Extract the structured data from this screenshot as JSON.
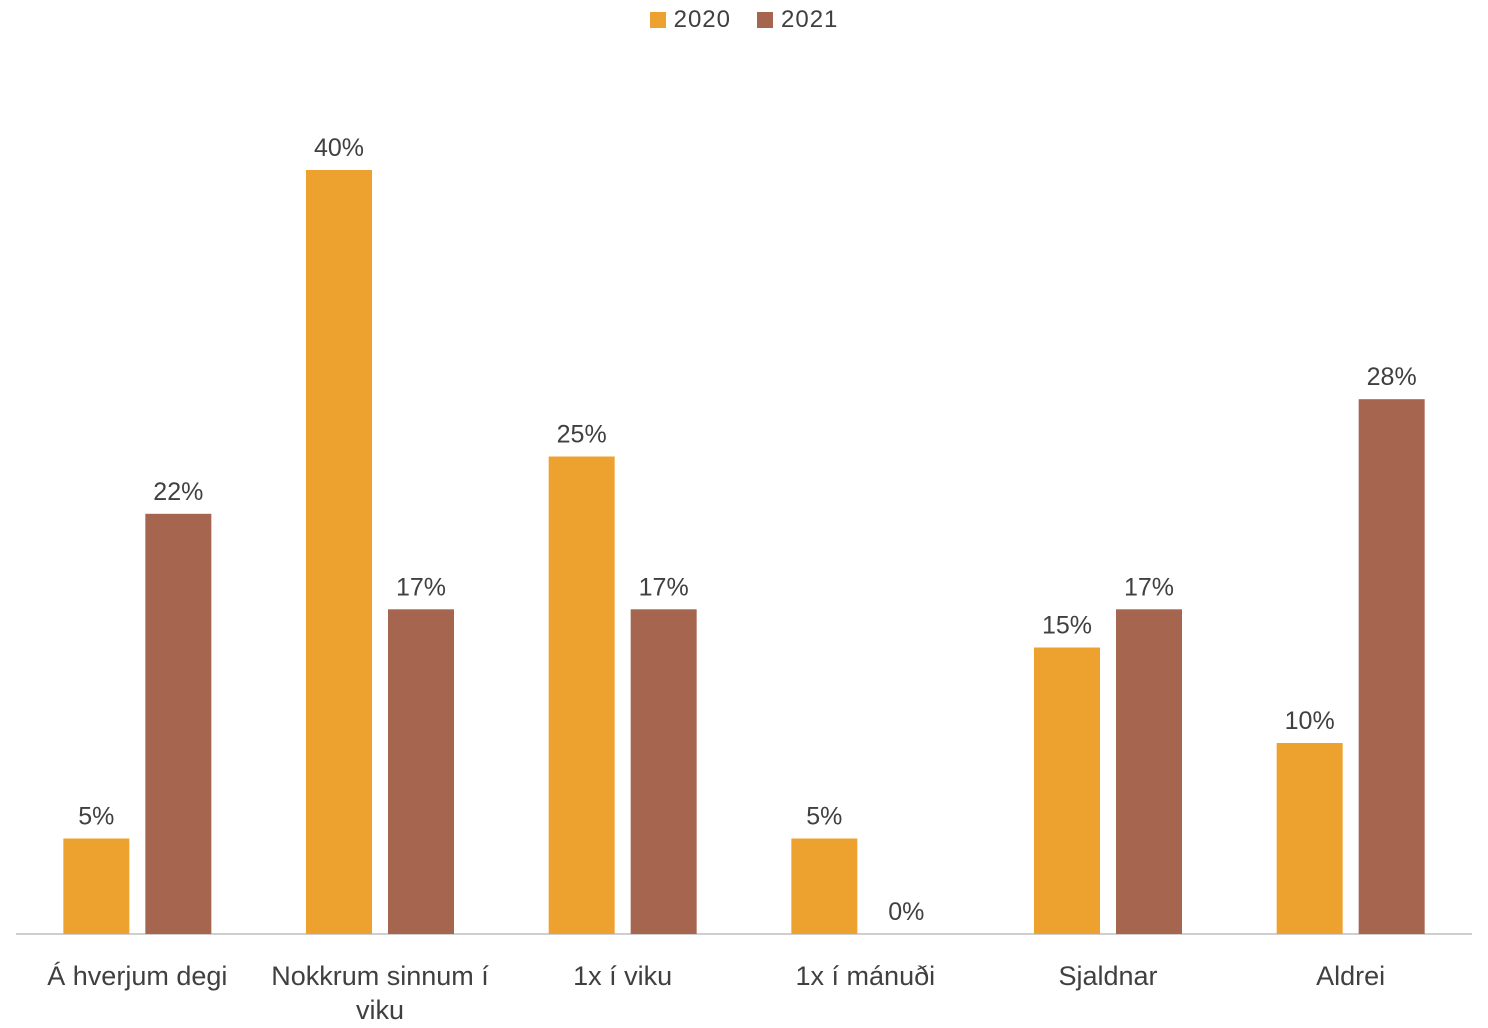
{
  "chart_data": {
    "type": "bar",
    "categories": [
      "Á hverjum degi",
      "Nokkrum sinnum í viku",
      "1x í viku",
      "1x í mánuði",
      "Sjaldnar",
      "Aldrei"
    ],
    "series": [
      {
        "name": "2020",
        "values": [
          5,
          40,
          25,
          5,
          15,
          10
        ],
        "labels": [
          "5%",
          "40%",
          "25%",
          "5%",
          "15%",
          "10%"
        ],
        "color": "#EDA22F"
      },
      {
        "name": "2021",
        "values": [
          22,
          17,
          17,
          0,
          17,
          28
        ],
        "labels": [
          "22%",
          "17%",
          "17%",
          "0%",
          "17%",
          "28%"
        ],
        "color": "#A5654F"
      }
    ],
    "ylim": [
      0,
      45
    ],
    "legend_position": "top-center",
    "grid": false,
    "axis_color": "#BFBFBF"
  }
}
